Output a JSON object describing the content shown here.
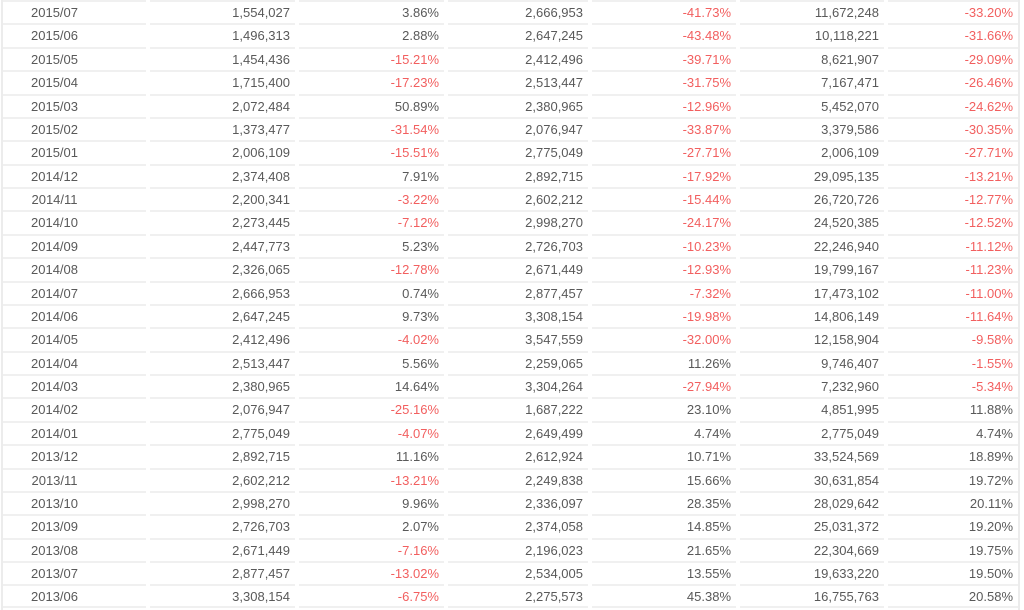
{
  "colors": {
    "text": "#595959",
    "negative": "#f25f5f",
    "row_border": "#f0f0f0",
    "outer_border": "#ececec",
    "background": "#ffffff"
  },
  "table": {
    "rows": [
      [
        "2015/07",
        "1,554,027",
        "3.86%",
        "2,666,953",
        "-41.73%",
        "11,672,248",
        "-33.20%"
      ],
      [
        "2015/06",
        "1,496,313",
        "2.88%",
        "2,647,245",
        "-43.48%",
        "10,118,221",
        "-31.66%"
      ],
      [
        "2015/05",
        "1,454,436",
        "-15.21%",
        "2,412,496",
        "-39.71%",
        "8,621,907",
        "-29.09%"
      ],
      [
        "2015/04",
        "1,715,400",
        "-17.23%",
        "2,513,447",
        "-31.75%",
        "7,167,471",
        "-26.46%"
      ],
      [
        "2015/03",
        "2,072,484",
        "50.89%",
        "2,380,965",
        "-12.96%",
        "5,452,070",
        "-24.62%"
      ],
      [
        "2015/02",
        "1,373,477",
        "-31.54%",
        "2,076,947",
        "-33.87%",
        "3,379,586",
        "-30.35%"
      ],
      [
        "2015/01",
        "2,006,109",
        "-15.51%",
        "2,775,049",
        "-27.71%",
        "2,006,109",
        "-27.71%"
      ],
      [
        "2014/12",
        "2,374,408",
        "7.91%",
        "2,892,715",
        "-17.92%",
        "29,095,135",
        "-13.21%"
      ],
      [
        "2014/11",
        "2,200,341",
        "-3.22%",
        "2,602,212",
        "-15.44%",
        "26,720,726",
        "-12.77%"
      ],
      [
        "2014/10",
        "2,273,445",
        "-7.12%",
        "2,998,270",
        "-24.17%",
        "24,520,385",
        "-12.52%"
      ],
      [
        "2014/09",
        "2,447,773",
        "5.23%",
        "2,726,703",
        "-10.23%",
        "22,246,940",
        "-11.12%"
      ],
      [
        "2014/08",
        "2,326,065",
        "-12.78%",
        "2,671,449",
        "-12.93%",
        "19,799,167",
        "-11.23%"
      ],
      [
        "2014/07",
        "2,666,953",
        "0.74%",
        "2,877,457",
        "-7.32%",
        "17,473,102",
        "-11.00%"
      ],
      [
        "2014/06",
        "2,647,245",
        "9.73%",
        "3,308,154",
        "-19.98%",
        "14,806,149",
        "-11.64%"
      ],
      [
        "2014/05",
        "2,412,496",
        "-4.02%",
        "3,547,559",
        "-32.00%",
        "12,158,904",
        "-9.58%"
      ],
      [
        "2014/04",
        "2,513,447",
        "5.56%",
        "2,259,065",
        "11.26%",
        "9,746,407",
        "-1.55%"
      ],
      [
        "2014/03",
        "2,380,965",
        "14.64%",
        "3,304,264",
        "-27.94%",
        "7,232,960",
        "-5.34%"
      ],
      [
        "2014/02",
        "2,076,947",
        "-25.16%",
        "1,687,222",
        "23.10%",
        "4,851,995",
        "11.88%"
      ],
      [
        "2014/01",
        "2,775,049",
        "-4.07%",
        "2,649,499",
        "4.74%",
        "2,775,049",
        "4.74%"
      ],
      [
        "2013/12",
        "2,892,715",
        "11.16%",
        "2,612,924",
        "10.71%",
        "33,524,569",
        "18.89%"
      ],
      [
        "2013/11",
        "2,602,212",
        "-13.21%",
        "2,249,838",
        "15.66%",
        "30,631,854",
        "19.72%"
      ],
      [
        "2013/10",
        "2,998,270",
        "9.96%",
        "2,336,097",
        "28.35%",
        "28,029,642",
        "20.11%"
      ],
      [
        "2013/09",
        "2,726,703",
        "2.07%",
        "2,374,058",
        "14.85%",
        "25,031,372",
        "19.20%"
      ],
      [
        "2013/08",
        "2,671,449",
        "-7.16%",
        "2,196,023",
        "21.65%",
        "22,304,669",
        "19.75%"
      ],
      [
        "2013/07",
        "2,877,457",
        "-13.02%",
        "2,534,005",
        "13.55%",
        "19,633,220",
        "19.50%"
      ],
      [
        "2013/06",
        "3,308,154",
        "-6.75%",
        "2,275,573",
        "45.38%",
        "16,755,763",
        "20.58%"
      ]
    ]
  }
}
